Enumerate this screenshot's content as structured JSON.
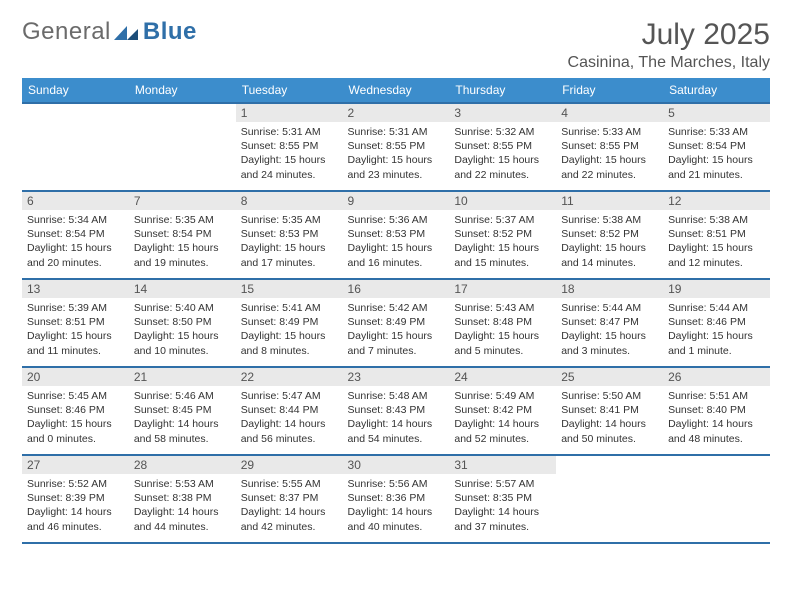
{
  "brand": {
    "name_a": "General",
    "name_b": "Blue"
  },
  "header": {
    "title": "July 2025",
    "location": "Casinina, The Marches, Italy"
  },
  "colors": {
    "header_bg": "#3c8dcc",
    "header_border": "#2f6fa8",
    "daynum_bg": "#e9e9e9",
    "text": "#333333"
  },
  "weekday_labels": [
    "Sunday",
    "Monday",
    "Tuesday",
    "Wednesday",
    "Thursday",
    "Friday",
    "Saturday"
  ],
  "weeks": [
    [
      {
        "empty": true
      },
      {
        "empty": true
      },
      {
        "num": "1",
        "sunrise": "Sunrise: 5:31 AM",
        "sunset": "Sunset: 8:55 PM",
        "day1": "Daylight: 15 hours",
        "day2": "and 24 minutes."
      },
      {
        "num": "2",
        "sunrise": "Sunrise: 5:31 AM",
        "sunset": "Sunset: 8:55 PM",
        "day1": "Daylight: 15 hours",
        "day2": "and 23 minutes."
      },
      {
        "num": "3",
        "sunrise": "Sunrise: 5:32 AM",
        "sunset": "Sunset: 8:55 PM",
        "day1": "Daylight: 15 hours",
        "day2": "and 22 minutes."
      },
      {
        "num": "4",
        "sunrise": "Sunrise: 5:33 AM",
        "sunset": "Sunset: 8:55 PM",
        "day1": "Daylight: 15 hours",
        "day2": "and 22 minutes."
      },
      {
        "num": "5",
        "sunrise": "Sunrise: 5:33 AM",
        "sunset": "Sunset: 8:54 PM",
        "day1": "Daylight: 15 hours",
        "day2": "and 21 minutes."
      }
    ],
    [
      {
        "num": "6",
        "sunrise": "Sunrise: 5:34 AM",
        "sunset": "Sunset: 8:54 PM",
        "day1": "Daylight: 15 hours",
        "day2": "and 20 minutes."
      },
      {
        "num": "7",
        "sunrise": "Sunrise: 5:35 AM",
        "sunset": "Sunset: 8:54 PM",
        "day1": "Daylight: 15 hours",
        "day2": "and 19 minutes."
      },
      {
        "num": "8",
        "sunrise": "Sunrise: 5:35 AM",
        "sunset": "Sunset: 8:53 PM",
        "day1": "Daylight: 15 hours",
        "day2": "and 17 minutes."
      },
      {
        "num": "9",
        "sunrise": "Sunrise: 5:36 AM",
        "sunset": "Sunset: 8:53 PM",
        "day1": "Daylight: 15 hours",
        "day2": "and 16 minutes."
      },
      {
        "num": "10",
        "sunrise": "Sunrise: 5:37 AM",
        "sunset": "Sunset: 8:52 PM",
        "day1": "Daylight: 15 hours",
        "day2": "and 15 minutes."
      },
      {
        "num": "11",
        "sunrise": "Sunrise: 5:38 AM",
        "sunset": "Sunset: 8:52 PM",
        "day1": "Daylight: 15 hours",
        "day2": "and 14 minutes."
      },
      {
        "num": "12",
        "sunrise": "Sunrise: 5:38 AM",
        "sunset": "Sunset: 8:51 PM",
        "day1": "Daylight: 15 hours",
        "day2": "and 12 minutes."
      }
    ],
    [
      {
        "num": "13",
        "sunrise": "Sunrise: 5:39 AM",
        "sunset": "Sunset: 8:51 PM",
        "day1": "Daylight: 15 hours",
        "day2": "and 11 minutes."
      },
      {
        "num": "14",
        "sunrise": "Sunrise: 5:40 AM",
        "sunset": "Sunset: 8:50 PM",
        "day1": "Daylight: 15 hours",
        "day2": "and 10 minutes."
      },
      {
        "num": "15",
        "sunrise": "Sunrise: 5:41 AM",
        "sunset": "Sunset: 8:49 PM",
        "day1": "Daylight: 15 hours",
        "day2": "and 8 minutes."
      },
      {
        "num": "16",
        "sunrise": "Sunrise: 5:42 AM",
        "sunset": "Sunset: 8:49 PM",
        "day1": "Daylight: 15 hours",
        "day2": "and 7 minutes."
      },
      {
        "num": "17",
        "sunrise": "Sunrise: 5:43 AM",
        "sunset": "Sunset: 8:48 PM",
        "day1": "Daylight: 15 hours",
        "day2": "and 5 minutes."
      },
      {
        "num": "18",
        "sunrise": "Sunrise: 5:44 AM",
        "sunset": "Sunset: 8:47 PM",
        "day1": "Daylight: 15 hours",
        "day2": "and 3 minutes."
      },
      {
        "num": "19",
        "sunrise": "Sunrise: 5:44 AM",
        "sunset": "Sunset: 8:46 PM",
        "day1": "Daylight: 15 hours",
        "day2": "and 1 minute."
      }
    ],
    [
      {
        "num": "20",
        "sunrise": "Sunrise: 5:45 AM",
        "sunset": "Sunset: 8:46 PM",
        "day1": "Daylight: 15 hours",
        "day2": "and 0 minutes."
      },
      {
        "num": "21",
        "sunrise": "Sunrise: 5:46 AM",
        "sunset": "Sunset: 8:45 PM",
        "day1": "Daylight: 14 hours",
        "day2": "and 58 minutes."
      },
      {
        "num": "22",
        "sunrise": "Sunrise: 5:47 AM",
        "sunset": "Sunset: 8:44 PM",
        "day1": "Daylight: 14 hours",
        "day2": "and 56 minutes."
      },
      {
        "num": "23",
        "sunrise": "Sunrise: 5:48 AM",
        "sunset": "Sunset: 8:43 PM",
        "day1": "Daylight: 14 hours",
        "day2": "and 54 minutes."
      },
      {
        "num": "24",
        "sunrise": "Sunrise: 5:49 AM",
        "sunset": "Sunset: 8:42 PM",
        "day1": "Daylight: 14 hours",
        "day2": "and 52 minutes."
      },
      {
        "num": "25",
        "sunrise": "Sunrise: 5:50 AM",
        "sunset": "Sunset: 8:41 PM",
        "day1": "Daylight: 14 hours",
        "day2": "and 50 minutes."
      },
      {
        "num": "26",
        "sunrise": "Sunrise: 5:51 AM",
        "sunset": "Sunset: 8:40 PM",
        "day1": "Daylight: 14 hours",
        "day2": "and 48 minutes."
      }
    ],
    [
      {
        "num": "27",
        "sunrise": "Sunrise: 5:52 AM",
        "sunset": "Sunset: 8:39 PM",
        "day1": "Daylight: 14 hours",
        "day2": "and 46 minutes."
      },
      {
        "num": "28",
        "sunrise": "Sunrise: 5:53 AM",
        "sunset": "Sunset: 8:38 PM",
        "day1": "Daylight: 14 hours",
        "day2": "and 44 minutes."
      },
      {
        "num": "29",
        "sunrise": "Sunrise: 5:55 AM",
        "sunset": "Sunset: 8:37 PM",
        "day1": "Daylight: 14 hours",
        "day2": "and 42 minutes."
      },
      {
        "num": "30",
        "sunrise": "Sunrise: 5:56 AM",
        "sunset": "Sunset: 8:36 PM",
        "day1": "Daylight: 14 hours",
        "day2": "and 40 minutes."
      },
      {
        "num": "31",
        "sunrise": "Sunrise: 5:57 AM",
        "sunset": "Sunset: 8:35 PM",
        "day1": "Daylight: 14 hours",
        "day2": "and 37 minutes."
      },
      {
        "empty": true
      },
      {
        "empty": true
      }
    ]
  ]
}
